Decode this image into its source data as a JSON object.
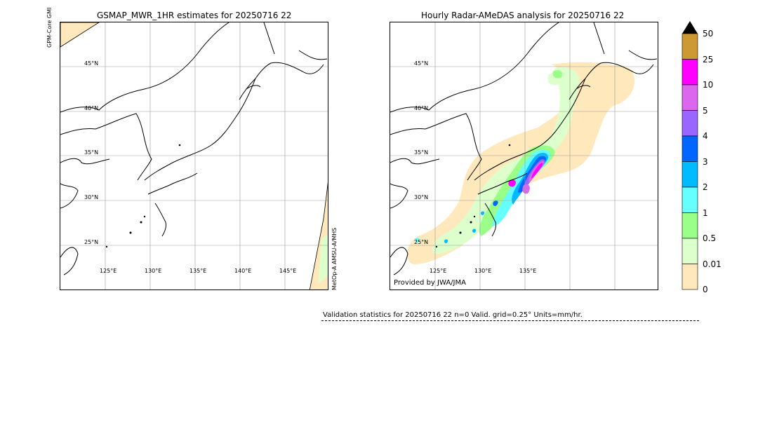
{
  "left_panel": {
    "title": "GSMAP_MWR_1HR estimates for 20250716 22",
    "side_label_left": "GPM-Core GMI",
    "side_label_right": "MetOp-A AMSU-A/MHS",
    "lat_labels": [
      "45°N",
      "40°N",
      "35°N",
      "30°N",
      "25°N"
    ],
    "lon_labels": [
      "125°E",
      "130°E",
      "135°E",
      "140°E",
      "145°E"
    ]
  },
  "right_panel": {
    "title": "Hourly Radar-AMeDAS analysis for 20250716 22",
    "lat_labels": [
      "45°N",
      "40°N",
      "35°N",
      "30°N",
      "25°N"
    ],
    "lon_labels": [
      "125°E",
      "130°E",
      "135°E"
    ],
    "credit": "Provided by JWA/JMA"
  },
  "colorbar": {
    "ticks": [
      "50",
      "25",
      "10",
      "5",
      "4",
      "3",
      "2",
      "1",
      "0.5",
      "0.01",
      "0"
    ],
    "colors": [
      "#cc9933",
      "#ff00ff",
      "#dd66ee",
      "#9966ff",
      "#0066ff",
      "#00bbff",
      "#66ffff",
      "#99ff88",
      "#ddffcc",
      "#ffe8bb"
    ],
    "extend_color": "#000000"
  },
  "stats": {
    "text": "Validation statistics for 20250716 22  n=0 Valid. grid=0.25° Units=mm/hr."
  }
}
